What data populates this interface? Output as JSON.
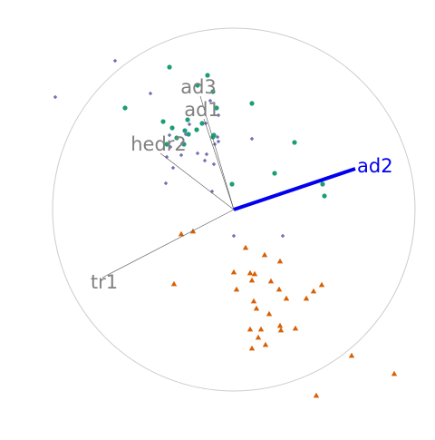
{
  "chart_data": {
    "type": "scatter",
    "subtype": "biplot",
    "title": "",
    "xlabel": "",
    "ylabel": "",
    "grid": false,
    "legend": "none",
    "xlim": [
      -1.0,
      1.0
    ],
    "ylim": [
      -1.0,
      1.0
    ],
    "circle": {
      "radius": 1.0,
      "color": "#cccccc"
    },
    "loadings": [
      {
        "name": "ad2",
        "x": 0.67,
        "y": 0.225,
        "color": "#0000ee",
        "highlighted": true
      },
      {
        "name": "ad3",
        "x": -0.185,
        "y": 0.625,
        "color": "#808080",
        "highlighted": false
      },
      {
        "name": "ad1",
        "x": -0.165,
        "y": 0.5,
        "color": "#808080",
        "highlighted": false
      },
      {
        "name": "hedr2",
        "x": -0.405,
        "y": 0.31,
        "color": "#808080",
        "highlighted": false
      },
      {
        "name": "tr1",
        "x": -0.725,
        "y": -0.375,
        "color": "#808080",
        "highlighted": false
      }
    ],
    "series": [
      {
        "shape": "circle",
        "color": "#1b9e77",
        "points": [
          [
            -0.355,
            0.785
          ],
          [
            -0.145,
            0.74
          ],
          [
            -0.115,
            0.65
          ],
          [
            -0.2,
            0.685
          ],
          [
            -0.6,
            0.56
          ],
          [
            -0.39,
            0.485
          ],
          [
            -0.255,
            0.495
          ],
          [
            -0.175,
            0.475
          ],
          [
            -0.27,
            0.435
          ],
          [
            -0.34,
            0.45
          ],
          [
            -0.205,
            0.44
          ],
          [
            -0.25,
            0.415
          ],
          [
            -0.315,
            0.395
          ],
          [
            -0.11,
            0.41
          ],
          [
            -0.275,
            0.36
          ],
          [
            -0.37,
            0.36
          ],
          [
            -0.095,
            0.56
          ],
          [
            0.1,
            0.585
          ],
          [
            0.335,
            0.37
          ],
          [
            0.225,
            0.2
          ],
          [
            0.49,
            0.14
          ],
          [
            0.5,
            0.075
          ],
          [
            -0.01,
            0.14
          ],
          [
            -0.115,
            0.4
          ]
        ]
      },
      {
        "shape": "diamond",
        "color": "#7570b3",
        "points": [
          [
            -0.655,
            0.82
          ],
          [
            -0.985,
            0.62
          ],
          [
            -0.46,
            0.64
          ],
          [
            -0.13,
            0.6
          ],
          [
            -0.085,
            0.52
          ],
          [
            -0.155,
            0.475
          ],
          [
            -0.245,
            0.47
          ],
          [
            -0.265,
            0.415
          ],
          [
            -0.355,
            0.41
          ],
          [
            -0.37,
            0.29
          ],
          [
            -0.29,
            0.3
          ],
          [
            -0.15,
            0.305
          ],
          [
            -0.105,
            0.36
          ],
          [
            -0.085,
            0.375
          ],
          [
            -0.09,
            0.4
          ],
          [
            -0.16,
            0.27
          ],
          [
            -0.11,
            0.25
          ],
          [
            -0.375,
            0.145
          ],
          [
            -0.12,
            0.1
          ],
          [
            -0.335,
            0.23
          ],
          [
            -0.2,
            0.31
          ],
          [
            0.1,
            0.39
          ],
          [
            0.27,
            -0.145
          ],
          [
            0.0,
            -0.145
          ],
          [
            -0.285,
            0.365
          ],
          [
            -0.35,
            0.345
          ]
        ]
      },
      {
        "shape": "triangle",
        "color": "#d95f02",
        "points": [
          [
            -0.225,
            -0.12
          ],
          [
            -0.29,
            -0.135
          ],
          [
            0.065,
            -0.21
          ],
          [
            0.17,
            -0.25
          ],
          [
            0.255,
            -0.285
          ],
          [
            0.0,
            -0.345
          ],
          [
            0.09,
            -0.35
          ],
          [
            0.115,
            -0.355
          ],
          [
            0.1,
            -0.39
          ],
          [
            0.205,
            -0.395
          ],
          [
            -0.33,
            -0.41
          ],
          [
            0.015,
            -0.44
          ],
          [
            0.25,
            -0.44
          ],
          [
            0.485,
            -0.415
          ],
          [
            0.44,
            -0.45
          ],
          [
            0.11,
            -0.505
          ],
          [
            0.29,
            -0.49
          ],
          [
            0.4,
            -0.49
          ],
          [
            0.125,
            -0.545
          ],
          [
            0.195,
            -0.575
          ],
          [
            0.255,
            -0.64
          ],
          [
            0.15,
            -0.66
          ],
          [
            0.34,
            -0.655
          ],
          [
            0.26,
            -0.665
          ],
          [
            0.09,
            -0.66
          ],
          [
            0.135,
            -0.705
          ],
          [
            0.175,
            -0.745
          ],
          [
            0.1,
            -0.765
          ],
          [
            0.65,
            -0.805
          ],
          [
            0.885,
            -0.905
          ],
          [
            0.455,
            -1.025
          ]
        ]
      }
    ]
  }
}
